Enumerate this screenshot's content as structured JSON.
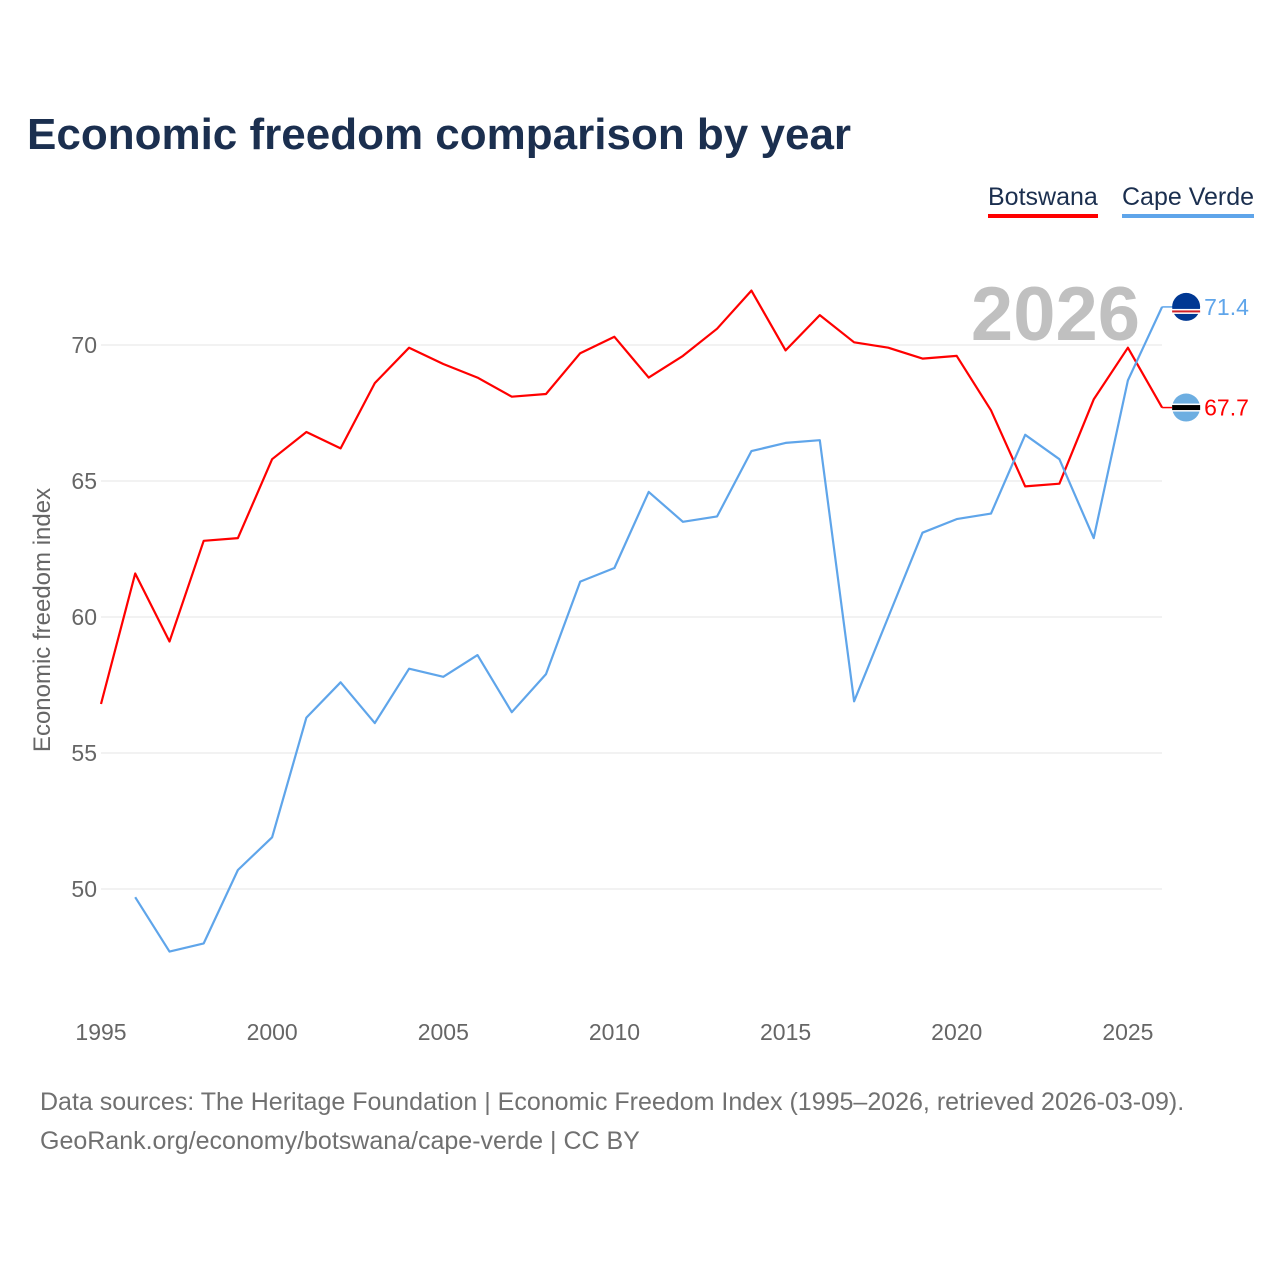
{
  "title": "Economic freedom comparison by year",
  "footer": {
    "line1": "Data sources: The Heritage Foundation | Economic Freedom Index (1995–2026, retrieved 2026-03-09).",
    "line2": "GeoRank.org/economy/botswana/cape-verde | CC BY"
  },
  "chart_data": {
    "type": "line",
    "title": "Economic freedom comparison by year",
    "xlabel": "",
    "ylabel": "Economic freedom index",
    "xlim": [
      1995,
      2026
    ],
    "ylim": [
      46.5,
      73.5
    ],
    "xticks": [
      "1995",
      "2000",
      "2005",
      "2010",
      "2015",
      "2020",
      "2025"
    ],
    "yticks": [
      "50",
      "55",
      "60",
      "65",
      "70"
    ],
    "grid": true,
    "legend_position": "top-right",
    "year_annotation": "2026",
    "series": [
      {
        "name": "Botswana",
        "color": "#ff0000",
        "end_label": "67.7",
        "x": [
          1995,
          1996,
          1997,
          1998,
          1999,
          2000,
          2001,
          2002,
          2003,
          2004,
          2005,
          2006,
          2007,
          2008,
          2009,
          2010,
          2011,
          2012,
          2013,
          2014,
          2015,
          2016,
          2017,
          2018,
          2019,
          2020,
          2021,
          2022,
          2023,
          2024,
          2025,
          2026
        ],
        "values": [
          56.8,
          61.6,
          59.1,
          62.8,
          62.9,
          65.8,
          66.8,
          66.2,
          68.6,
          69.9,
          69.3,
          68.8,
          68.1,
          68.2,
          69.7,
          70.3,
          68.8,
          69.6,
          70.6,
          72.0,
          69.8,
          71.1,
          70.1,
          69.9,
          69.5,
          69.6,
          67.6,
          64.8,
          64.9,
          68.0,
          69.9,
          67.7
        ]
      },
      {
        "name": "Cape Verde",
        "color": "#5fa5ea",
        "end_label": "71.4",
        "x": [
          1996,
          1997,
          1998,
          1999,
          2000,
          2001,
          2002,
          2003,
          2004,
          2005,
          2006,
          2007,
          2008,
          2009,
          2010,
          2011,
          2012,
          2013,
          2014,
          2015,
          2016,
          2017,
          2018,
          2019,
          2020,
          2021,
          2022,
          2023,
          2024,
          2025,
          2026
        ],
        "values": [
          49.7,
          47.7,
          48.0,
          50.7,
          51.9,
          56.3,
          57.6,
          56.1,
          58.1,
          57.8,
          58.6,
          56.5,
          57.9,
          61.3,
          61.8,
          64.6,
          63.5,
          63.7,
          66.1,
          66.4,
          66.5,
          56.9,
          60.0,
          63.1,
          63.6,
          63.8,
          66.7,
          65.8,
          62.9,
          68.7,
          71.4
        ]
      }
    ]
  }
}
